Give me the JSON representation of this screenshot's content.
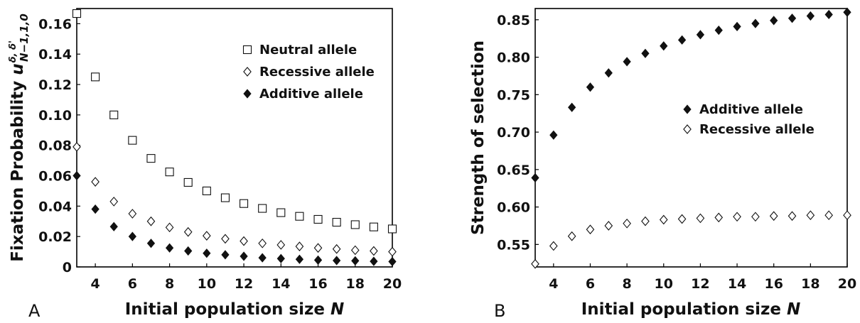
{
  "chart_data": [
    {
      "type": "scatter",
      "panel_label": "A",
      "xlabel_text": "Initial population size ",
      "xlabel_var": "N",
      "ylabel_text": "Fixation Probability ",
      "ylabel_var": "u",
      "ylabel_sup": "δ, δ'",
      "ylabel_sub": "N−1,1,0",
      "xlim": [
        3,
        20
      ],
      "ylim": [
        0,
        0.17
      ],
      "xticks": [
        4,
        6,
        8,
        10,
        12,
        14,
        16,
        18,
        20
      ],
      "yticks": [
        0,
        0.02,
        0.04,
        0.06,
        0.08,
        0.1,
        0.12,
        0.14,
        0.16
      ],
      "ytick_labels": [
        "0",
        "0.02",
        "0.04",
        "0.06",
        "0.08",
        "0.10",
        "0.12",
        "0.14",
        "0.16"
      ],
      "legend_position": "top-right",
      "x": [
        3,
        4,
        5,
        6,
        7,
        8,
        9,
        10,
        11,
        12,
        13,
        14,
        15,
        16,
        17,
        18,
        19,
        20
      ],
      "series": [
        {
          "name": "Neutral allele",
          "marker": "open-square",
          "values": [
            0.1667,
            0.125,
            0.1,
            0.0833,
            0.0714,
            0.0625,
            0.0556,
            0.05,
            0.0455,
            0.0417,
            0.0385,
            0.0357,
            0.0333,
            0.0313,
            0.0294,
            0.0278,
            0.0263,
            0.025
          ]
        },
        {
          "name": "Recessive allele",
          "marker": "open-diamond",
          "values": [
            0.079,
            0.056,
            0.043,
            0.035,
            0.03,
            0.026,
            0.023,
            0.0205,
            0.0185,
            0.017,
            0.0155,
            0.0145,
            0.0135,
            0.0125,
            0.0118,
            0.011,
            0.0105,
            0.01
          ]
        },
        {
          "name": "Additive allele",
          "marker": "filled-diamond",
          "values": [
            0.06,
            0.038,
            0.0265,
            0.02,
            0.0155,
            0.0125,
            0.0105,
            0.009,
            0.008,
            0.007,
            0.006,
            0.0055,
            0.005,
            0.0045,
            0.0042,
            0.004,
            0.0037,
            0.0035
          ]
        }
      ]
    },
    {
      "type": "scatter",
      "panel_label": "B",
      "xlabel_text": "Initial population size ",
      "xlabel_var": "N",
      "ylabel_text": "Strength of selection",
      "xlim": [
        3,
        20
      ],
      "ylim": [
        0.52,
        0.865
      ],
      "xticks": [
        4,
        6,
        8,
        10,
        12,
        14,
        16,
        18,
        20
      ],
      "yticks": [
        0.55,
        0.6,
        0.65,
        0.7,
        0.75,
        0.8,
        0.85
      ],
      "ytick_labels": [
        "0.55",
        "0.60",
        "0.65",
        "0.70",
        "0.75",
        "0.80",
        "0.85"
      ],
      "legend_position": "center-right",
      "x": [
        3,
        4,
        5,
        6,
        7,
        8,
        9,
        10,
        11,
        12,
        13,
        14,
        15,
        16,
        17,
        18,
        19,
        20
      ],
      "series": [
        {
          "name": "Additive allele",
          "marker": "filled-diamond",
          "values": [
            0.639,
            0.696,
            0.733,
            0.76,
            0.779,
            0.794,
            0.805,
            0.815,
            0.823,
            0.83,
            0.836,
            0.841,
            0.845,
            0.849,
            0.852,
            0.855,
            0.857,
            0.86
          ]
        },
        {
          "name": "Recessive allele",
          "marker": "open-diamond",
          "values": [
            0.524,
            0.548,
            0.561,
            0.57,
            0.575,
            0.578,
            0.581,
            0.583,
            0.584,
            0.585,
            0.586,
            0.587,
            0.587,
            0.588,
            0.588,
            0.589,
            0.589,
            0.589
          ]
        }
      ]
    }
  ]
}
